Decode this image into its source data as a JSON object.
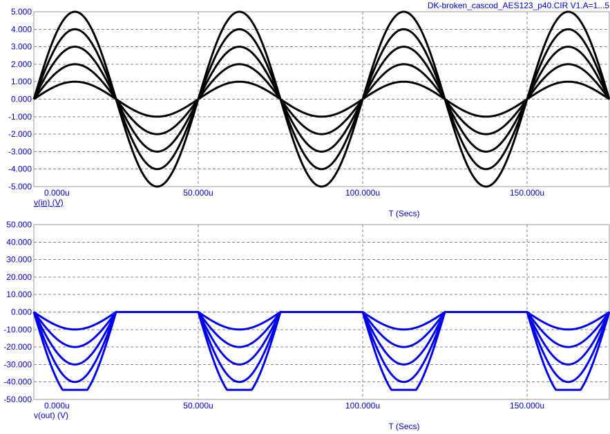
{
  "title": "DK-broken_cascod_AES123_p40.CIR V1.A=1...5",
  "colors": {
    "text": "#0000cc",
    "top_trace": "#000000",
    "bottom_trace": "#0000ee",
    "grid": "#808080"
  },
  "chart_data": [
    {
      "type": "line",
      "ylabel": "v(in) (V)",
      "xlabel": "T (Secs)",
      "xlim": [
        0,
        175
      ],
      "x_unit": "us",
      "ylim": [
        -5,
        5
      ],
      "x_ticks": [
        "0.000u",
        "50.000u",
        "100.000u",
        "150.000u"
      ],
      "x_tick_values": [
        0,
        50,
        100,
        150
      ],
      "y_ticks": [
        "5.000",
        "4.000",
        "3.000",
        "2.000",
        "1.000",
        "0.000",
        "-1.000",
        "-2.000",
        "-3.000",
        "-4.000",
        "-5.000"
      ],
      "y_tick_values": [
        5,
        4,
        3,
        2,
        1,
        0,
        -1,
        -2,
        -3,
        -4,
        -5
      ],
      "grid": true,
      "waveform": "sine",
      "period": 50,
      "series": [
        {
          "amplitude": 1
        },
        {
          "amplitude": 2
        },
        {
          "amplitude": 3
        },
        {
          "amplitude": 4
        },
        {
          "amplitude": 5
        }
      ]
    },
    {
      "type": "line",
      "ylabel": "v(out) (V)",
      "xlabel": "T (Secs)",
      "xlim": [
        0,
        175
      ],
      "x_unit": "us",
      "ylim": [
        -50,
        50
      ],
      "x_ticks": [
        "0.000u",
        "50.000u",
        "100.000u",
        "150.000u"
      ],
      "x_tick_values": [
        0,
        50,
        100,
        150
      ],
      "y_ticks": [
        "50.000",
        "40.000",
        "30.000",
        "20.000",
        "10.000",
        "0.000",
        "-10.000",
        "-20.000",
        "-30.000",
        "-40.000",
        "-50.000"
      ],
      "y_tick_values": [
        50,
        40,
        30,
        20,
        10,
        0,
        -10,
        -20,
        -30,
        -40,
        -50
      ],
      "grid": true,
      "waveform": "inverted half-wave, clipped",
      "period": 50,
      "gain": -10,
      "clip_level": -44.5,
      "series": [
        {
          "amplitude": 1
        },
        {
          "amplitude": 2
        },
        {
          "amplitude": 3
        },
        {
          "amplitude": 4
        },
        {
          "amplitude": 5
        }
      ]
    }
  ]
}
